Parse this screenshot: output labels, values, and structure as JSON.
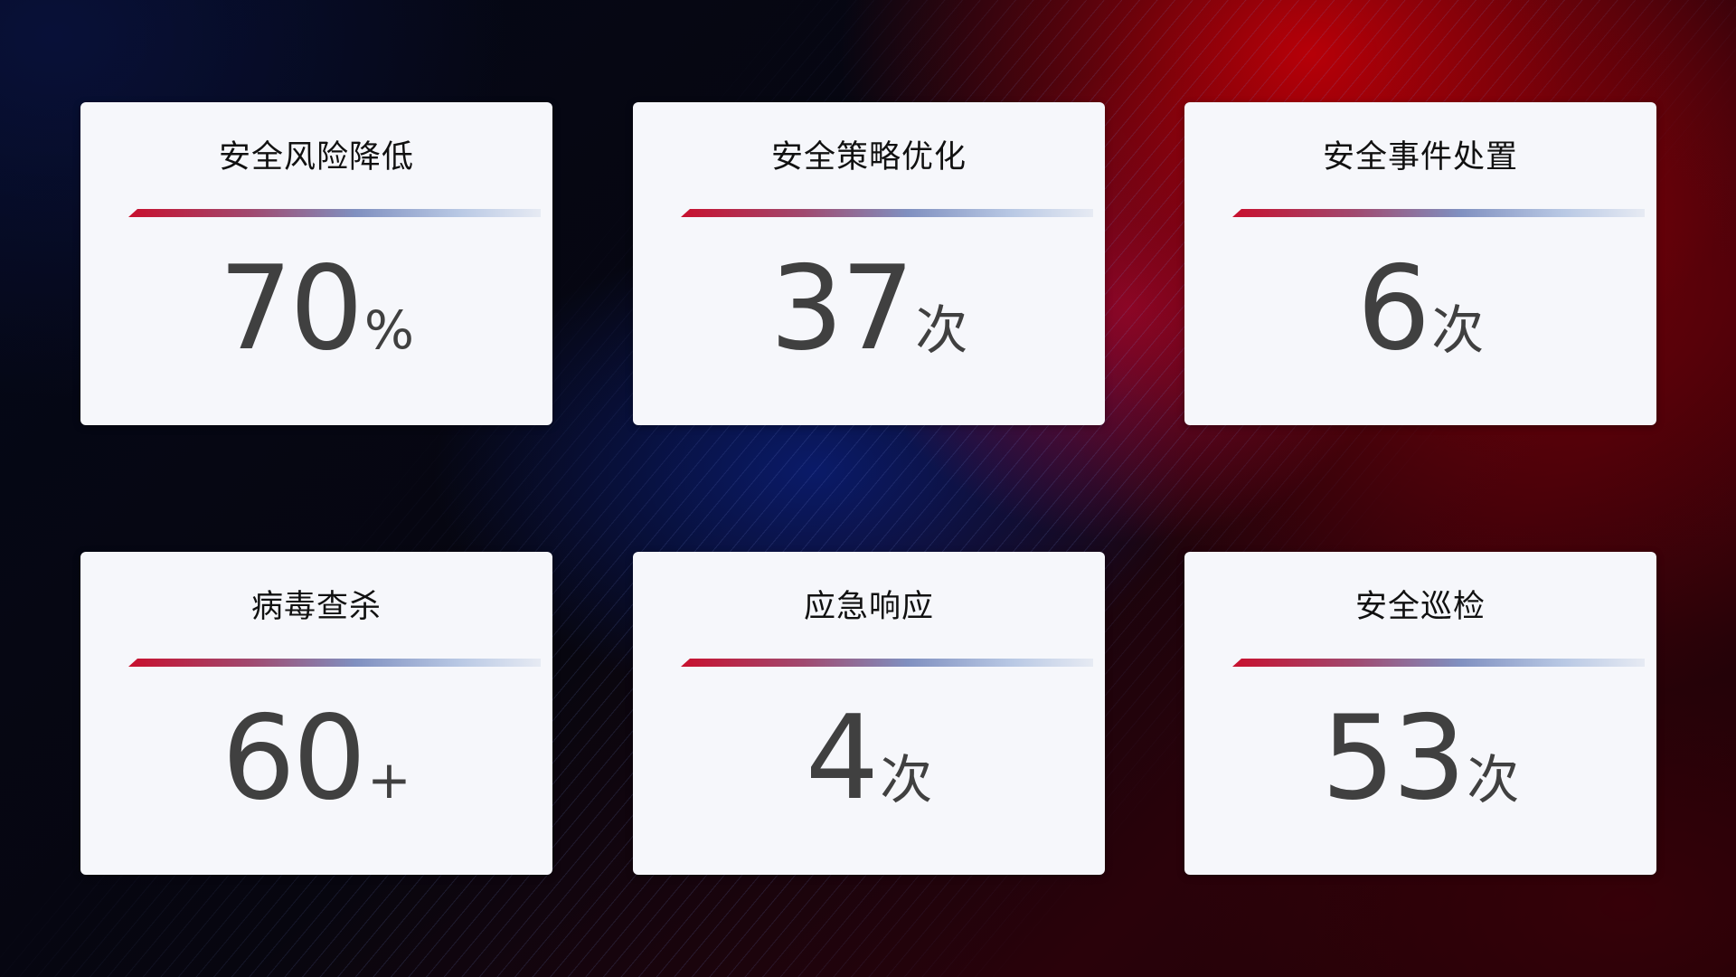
{
  "cards": [
    {
      "title": "安全风险降低",
      "value": "70",
      "unit": "%"
    },
    {
      "title": "安全策略优化",
      "value": "37",
      "unit": "次"
    },
    {
      "title": "安全事件处置",
      "value": "6",
      "unit": "次"
    },
    {
      "title": "病毒查杀",
      "value": "60",
      "unit": "+"
    },
    {
      "title": "应急响应",
      "value": "4",
      "unit": "次"
    },
    {
      "title": "安全巡检",
      "value": "53",
      "unit": "次"
    }
  ],
  "colors": {
    "accent_red": "#c8102e",
    "accent_blue": "#8090c0",
    "card_bg": "#f6f7fb",
    "value_text": "#404040"
  }
}
